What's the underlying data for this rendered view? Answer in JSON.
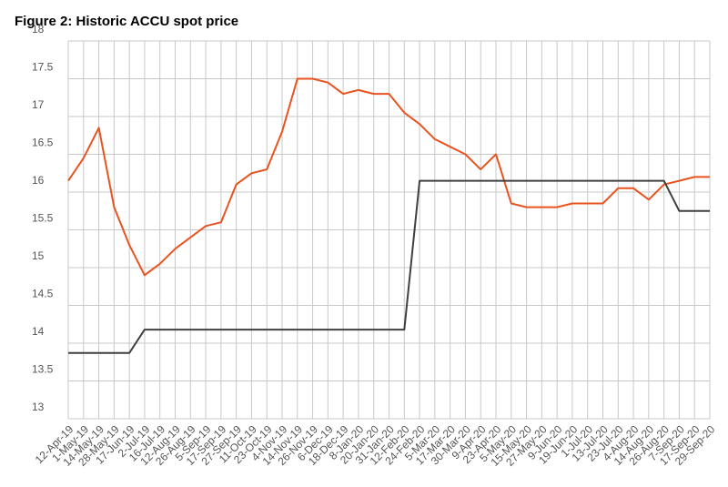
{
  "chart_data": {
    "type": "line",
    "title": "Figure 2: Historic ACCU spot price",
    "categories": [
      "12-Apr-19",
      "1-May-19",
      "14-May-19",
      "28-May-19",
      "17-Jun-19",
      "2-Jul-19",
      "16-Jul-19",
      "12-Aug-19",
      "26-Aug-19",
      "5-Sep-19",
      "17-Sep-19",
      "27-Sep-19",
      "11-Oct-19",
      "23-Oct-19",
      "4-Nov-19",
      "14-Nov-19",
      "26-Nov-19",
      "6-Dec-19",
      "18-Dec-19",
      "8-Jan-20",
      "20-Jan-20",
      "31-Jan-20",
      "12-Feb-20",
      "24-Feb-20",
      "5-Mar-20",
      "17-Mar-20",
      "30-Mar-20",
      "9-Apr-20",
      "23-Apr-20",
      "5-May-20",
      "15-May-20",
      "27-May-20",
      "9-Jun-20",
      "19-Jun-20",
      "1-Jul-20",
      "13-Jul-20",
      "23-Jul-20",
      "4-Aug-20",
      "14-Aug-20",
      "26-Aug-20",
      "7-Sep-20",
      "17-Sep-20",
      "29-Sep-20"
    ],
    "series": [
      {
        "color": "#e8531f",
        "values": [
          16.15,
          16.45,
          16.85,
          15.8,
          15.3,
          14.9,
          15.05,
          15.25,
          15.4,
          15.55,
          15.6,
          16.1,
          16.25,
          16.3,
          16.8,
          17.5,
          17.5,
          17.45,
          17.3,
          17.35,
          17.3,
          17.3,
          17.05,
          16.9,
          16.7,
          16.6,
          16.5,
          16.3,
          16.5,
          15.85,
          15.8,
          15.8,
          15.8,
          15.85,
          15.85,
          15.85,
          16.05,
          16.05,
          15.9,
          16.1,
          16.15,
          16.2,
          16.2
        ]
      },
      {
        "color": "#404040",
        "values": [
          13.87,
          13.87,
          13.87,
          13.87,
          13.87,
          14.18,
          14.18,
          14.18,
          14.18,
          14.18,
          14.18,
          14.18,
          14.18,
          14.18,
          14.18,
          14.18,
          14.18,
          14.18,
          14.18,
          14.18,
          14.18,
          14.18,
          14.18,
          16.15,
          16.15,
          16.15,
          16.15,
          16.15,
          16.15,
          16.15,
          16.15,
          16.15,
          16.15,
          16.15,
          16.15,
          16.15,
          16.15,
          16.15,
          16.15,
          16.15,
          15.75,
          15.75,
          15.75
        ]
      }
    ],
    "ylim": [
      13,
      18
    ],
    "yticks": [
      13,
      13.5,
      14,
      14.5,
      15,
      15.5,
      16,
      16.5,
      17,
      17.5,
      18
    ],
    "grid": true
  }
}
